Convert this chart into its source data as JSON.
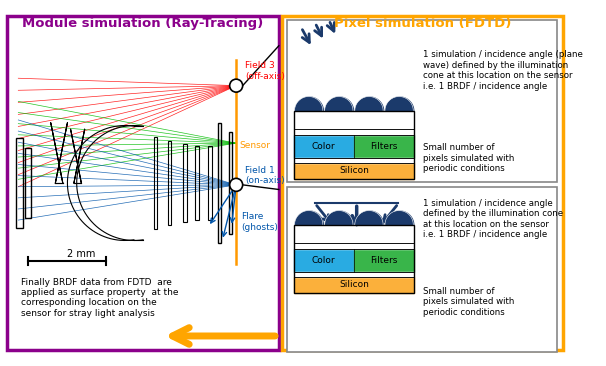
{
  "title_left": "Module simulation (Ray-Tracing)",
  "title_right": "Pixel simulation (FDTD)",
  "left_border_color": "#8B008B",
  "right_border_color": "#FFA500",
  "background_color": "#FFFFFF",
  "label_field3": "Field 3\n(off-axis)",
  "label_sensor": "Sensor",
  "label_field1": "Field 1\n(on-axis)",
  "label_flare": "Flare\n(ghosts)",
  "label_scale": "2 mm",
  "label_bottom": "Finally BRDF data from FDTD  are\napplied as surface property  at the\ncorresponding location on the\nsensor for stray light analysis",
  "text_top_right": "1 simulation / incidence angle (plane\nwave) defined by the illumination\ncone at this location on the sensor\ni.e. 1 BRDF / incidence angle",
  "text_small_top": "Small number of\npixels simulated with\nperiodic conditions",
  "text_mid_right": "1 simulation / incidence angle\ndefined by the illumination cone\nat this location on the sensor\ni.e. 1 BRDF / incidence angle",
  "text_small_bot": "Small number of\npixels simulated with\nperiodic conditions",
  "color_cyan": "#29ABE2",
  "color_green": "#39B54A",
  "color_yellow": "#FBB03B",
  "color_navy": "#1B3A6B",
  "color_red": "#FF0000",
  "color_green_ray": "#00BB00",
  "color_blue_ray": "#0055AA",
  "color_orange_sensor": "#FF9900",
  "color_arrow_big": "#FFA500",
  "color_gray_box": "#888888"
}
